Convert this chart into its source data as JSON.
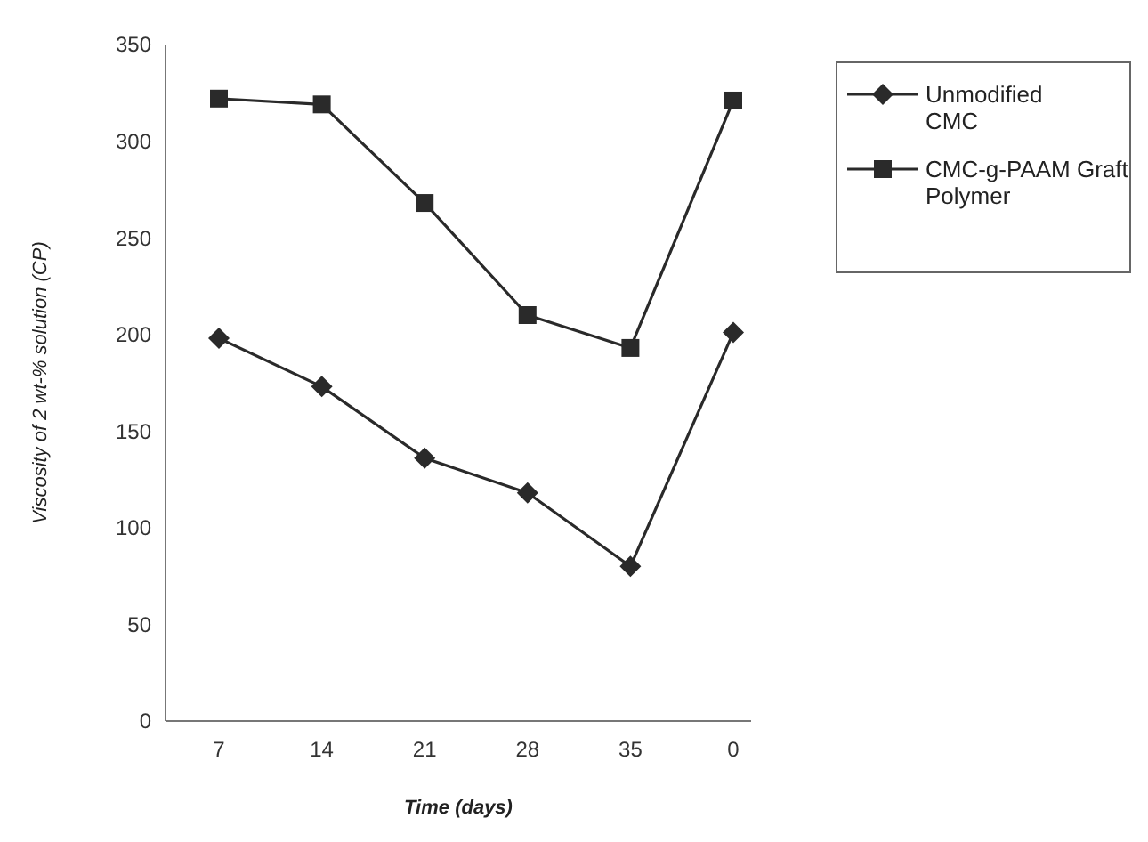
{
  "chart_data": {
    "type": "line",
    "xlabel": "Time (days)",
    "ylabel": "Viscosity of 2 wt-% solution (CP)",
    "categories": [
      "7",
      "14",
      "21",
      "28",
      "35",
      "0"
    ],
    "ylim": [
      0,
      350
    ],
    "yticks": [
      0,
      50,
      100,
      150,
      200,
      250,
      300,
      350
    ],
    "grid": false,
    "legend": "top right",
    "line_style": "solid",
    "series": [
      {
        "name": "Unmodified CMC",
        "color": "#2a2a2a",
        "marker": "diamond",
        "values": [
          198,
          173,
          136,
          118,
          80,
          201
        ]
      },
      {
        "name": "CMC-g-PAAM Graft Polymer",
        "color": "#2a2a2a",
        "marker": "square",
        "values": [
          322,
          319,
          268,
          210,
          193,
          321
        ]
      }
    ]
  }
}
